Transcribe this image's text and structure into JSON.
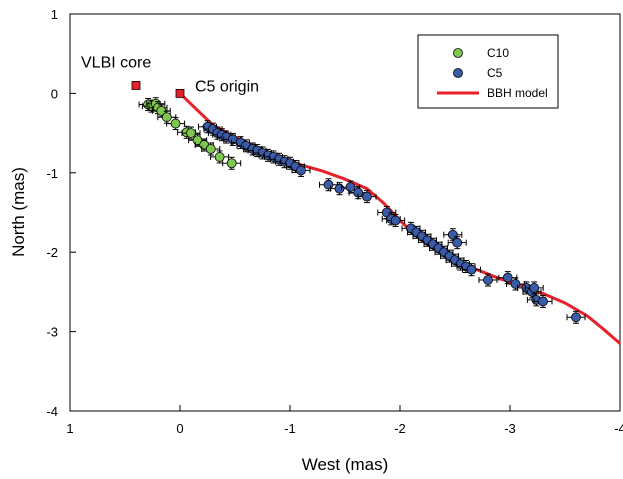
{
  "chart_data": {
    "type": "scatter",
    "xlabel": "West (mas)",
    "ylabel": "North (mas)",
    "xlim": [
      1,
      -4
    ],
    "ylim": [
      -4,
      1
    ],
    "x_axis_reversed": true,
    "xticks": [
      1,
      0,
      -1,
      -2,
      -3,
      -4
    ],
    "xtick_labels": [
      "1",
      "0",
      "-1",
      "-2",
      "-3",
      "-4"
    ],
    "yticks": [
      1,
      0,
      -1,
      -2,
      -3,
      -4
    ],
    "ytick_labels": [
      "1",
      "0",
      "-1",
      "-2",
      "-3",
      "-4"
    ],
    "legend_position": "top-right",
    "legend": [
      {
        "label": "C10",
        "marker": "circle",
        "color": "#7ec850"
      },
      {
        "label": "C5",
        "marker": "circle",
        "color": "#3a5ba8"
      },
      {
        "label": "BBH model",
        "marker": "line",
        "color": "#e8202a"
      }
    ],
    "annotations": [
      {
        "text": "VLBI core",
        "x": 0.4,
        "y": 0.1,
        "marker_color": "#e8202a"
      },
      {
        "text": "C5 origin",
        "x": 0.0,
        "y": 0.0,
        "marker_color": "#e8202a"
      }
    ],
    "series": [
      {
        "name": "C10",
        "color": "#7ec850",
        "points": [
          [
            0.29,
            -0.14
          ],
          [
            0.26,
            -0.16
          ],
          [
            0.22,
            -0.13
          ],
          [
            0.2,
            -0.18
          ],
          [
            0.17,
            -0.22
          ],
          [
            0.12,
            -0.3
          ],
          [
            0.04,
            -0.38
          ],
          [
            -0.06,
            -0.49
          ],
          [
            -0.1,
            -0.5
          ],
          [
            -0.16,
            -0.59
          ],
          [
            -0.22,
            -0.65
          ],
          [
            -0.28,
            -0.7
          ],
          [
            -0.36,
            -0.8
          ],
          [
            -0.47,
            -0.88
          ]
        ]
      },
      {
        "name": "C5",
        "color": "#3a5ba8",
        "points": [
          [
            -0.25,
            -0.42
          ],
          [
            -0.3,
            -0.45
          ],
          [
            -0.34,
            -0.5
          ],
          [
            -0.38,
            -0.52
          ],
          [
            -0.42,
            -0.55
          ],
          [
            -0.48,
            -0.58
          ],
          [
            -0.55,
            -0.62
          ],
          [
            -0.6,
            -0.66
          ],
          [
            -0.66,
            -0.7
          ],
          [
            -0.7,
            -0.72
          ],
          [
            -0.75,
            -0.75
          ],
          [
            -0.8,
            -0.78
          ],
          [
            -0.85,
            -0.8
          ],
          [
            -0.9,
            -0.83
          ],
          [
            -0.95,
            -0.86
          ],
          [
            -1.0,
            -0.88
          ],
          [
            -1.05,
            -0.92
          ],
          [
            -1.1,
            -0.97
          ],
          [
            -1.35,
            -1.15
          ],
          [
            -1.45,
            -1.2
          ],
          [
            -1.55,
            -1.18
          ],
          [
            -1.62,
            -1.25
          ],
          [
            -1.7,
            -1.3
          ],
          [
            -1.88,
            -1.5
          ],
          [
            -1.92,
            -1.58
          ],
          [
            -1.96,
            -1.6
          ],
          [
            -2.1,
            -1.7
          ],
          [
            -2.15,
            -1.75
          ],
          [
            -2.2,
            -1.8
          ],
          [
            -2.25,
            -1.85
          ],
          [
            -2.3,
            -1.9
          ],
          [
            -2.35,
            -1.95
          ],
          [
            -2.4,
            -2.0
          ],
          [
            -2.45,
            -2.05
          ],
          [
            -2.48,
            -1.78
          ],
          [
            -2.52,
            -1.88
          ],
          [
            -2.5,
            -2.1
          ],
          [
            -2.55,
            -2.15
          ],
          [
            -2.6,
            -2.18
          ],
          [
            -2.65,
            -2.22
          ],
          [
            -2.8,
            -2.35
          ],
          [
            -2.98,
            -2.32
          ],
          [
            -3.05,
            -2.4
          ],
          [
            -3.15,
            -2.45
          ],
          [
            -3.2,
            -2.5
          ],
          [
            -3.22,
            -2.45
          ],
          [
            -3.24,
            -2.6
          ],
          [
            -3.3,
            -2.62
          ],
          [
            -3.6,
            -2.82
          ]
        ]
      },
      {
        "name": "BBH model",
        "type": "line",
        "color": "#e8202a",
        "points": [
          [
            0.0,
            0.0
          ],
          [
            -0.15,
            -0.2
          ],
          [
            -0.3,
            -0.4
          ],
          [
            -0.5,
            -0.55
          ],
          [
            -0.7,
            -0.68
          ],
          [
            -0.9,
            -0.8
          ],
          [
            -1.1,
            -0.9
          ],
          [
            -1.3,
            -0.98
          ],
          [
            -1.5,
            -1.08
          ],
          [
            -1.7,
            -1.2
          ],
          [
            -1.85,
            -1.38
          ],
          [
            -2.0,
            -1.6
          ],
          [
            -2.15,
            -1.8
          ],
          [
            -2.3,
            -1.95
          ],
          [
            -2.5,
            -2.1
          ],
          [
            -2.7,
            -2.22
          ],
          [
            -2.9,
            -2.33
          ],
          [
            -3.1,
            -2.42
          ],
          [
            -3.3,
            -2.52
          ],
          [
            -3.5,
            -2.64
          ],
          [
            -3.7,
            -2.8
          ],
          [
            -3.85,
            -2.97
          ],
          [
            -4.0,
            -3.15
          ]
        ]
      }
    ]
  }
}
